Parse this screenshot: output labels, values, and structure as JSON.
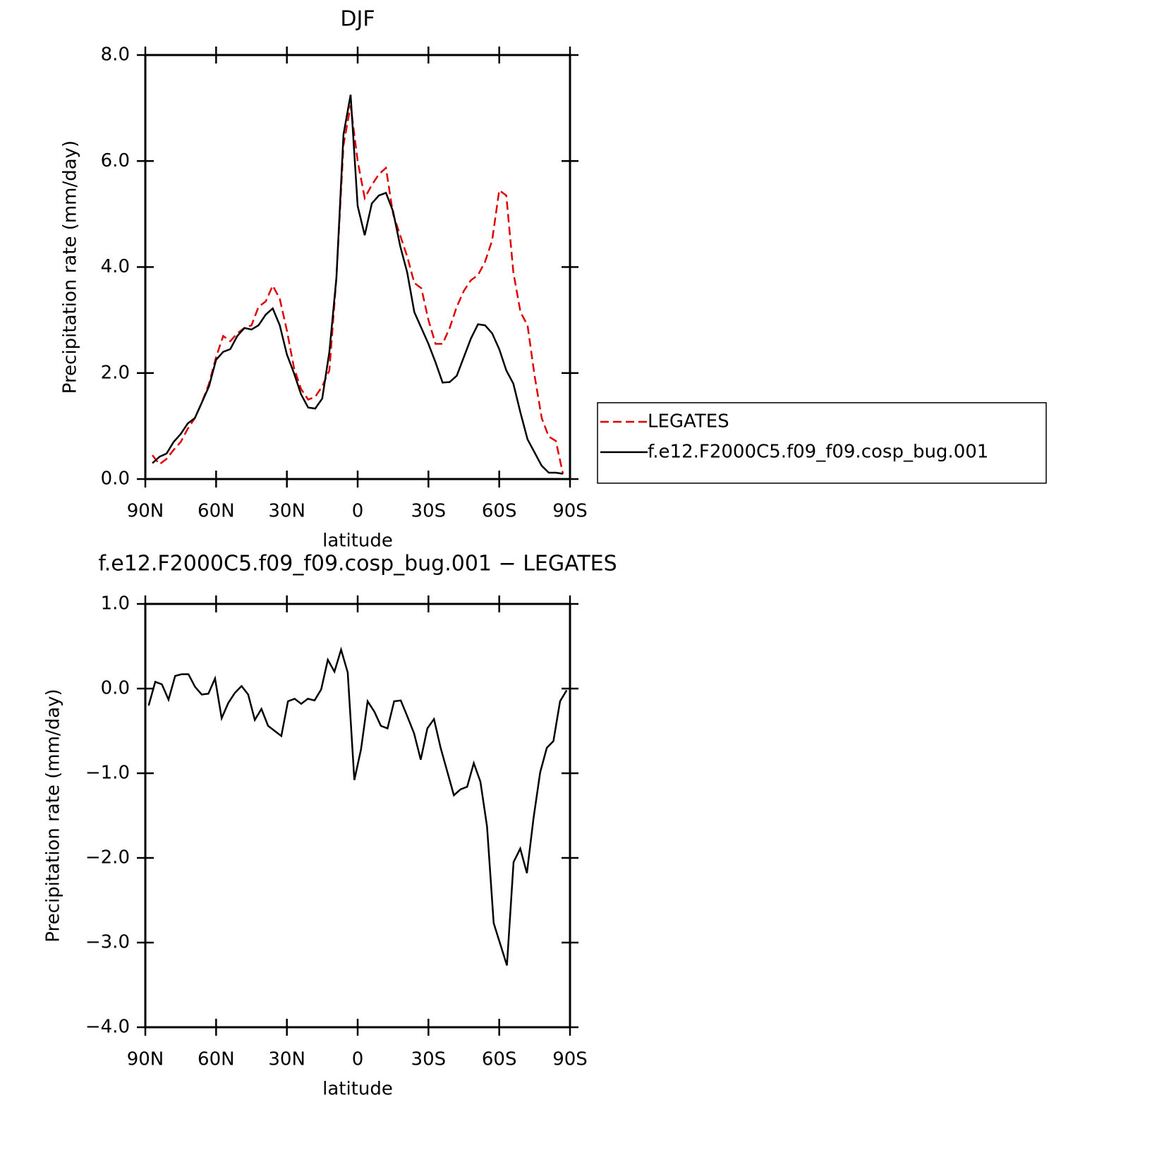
{
  "chart_data": [
    {
      "type": "line",
      "title": "DJF",
      "x_label": "latitude",
      "y_label": "Precipitation rate (mm/day)",
      "xlim": [
        90,
        -90
      ],
      "xticks": [
        {
          "value": 90,
          "label": "90N"
        },
        {
          "value": 60,
          "label": "60N"
        },
        {
          "value": 30,
          "label": "30N"
        },
        0,
        {
          "value": -30,
          "label": "30S"
        },
        {
          "value": -60,
          "label": "60S"
        },
        {
          "value": -90,
          "label": "90S"
        }
      ],
      "ylim": [
        0,
        8
      ],
      "yticks": [
        {
          "value": 0,
          "label": "0.0"
        },
        {
          "value": 2,
          "label": "2.0"
        },
        {
          "value": 4,
          "label": "4.0"
        },
        {
          "value": 6,
          "label": "6.0"
        },
        {
          "value": 8,
          "label": "8.0"
        }
      ],
      "legend": "right",
      "x": [
        87,
        84,
        81,
        78,
        75,
        72,
        69,
        66,
        63,
        60,
        57,
        54,
        51,
        48,
        45,
        42,
        39,
        36,
        33,
        30,
        27,
        24,
        21,
        18,
        15,
        12,
        9,
        6,
        3,
        0,
        -3,
        -6,
        -9,
        -12,
        -15,
        -18,
        -21,
        -24,
        -27,
        -30,
        -33,
        -36,
        -39,
        -42,
        -45,
        -48,
        -51,
        -54,
        -57,
        -60,
        -63,
        -66,
        -69,
        -72,
        -75,
        -78,
        -81,
        -84,
        -87
      ],
      "series": [
        {
          "name": "LEGATES",
          "color": "#e00000",
          "linestyle": "dashed",
          "values": [
            0.45,
            0.28,
            0.38,
            0.55,
            0.7,
            0.95,
            1.15,
            1.45,
            1.8,
            2.3,
            2.7,
            2.6,
            2.75,
            2.85,
            2.9,
            3.25,
            3.35,
            3.65,
            3.4,
            2.8,
            2.1,
            1.7,
            1.5,
            1.55,
            1.75,
            2.05,
            3.8,
            6.3,
            7.05,
            6.0,
            5.3,
            5.55,
            5.75,
            5.87,
            5.0,
            4.6,
            4.2,
            3.7,
            3.6,
            3.0,
            2.55,
            2.55,
            2.85,
            3.25,
            3.55,
            3.75,
            3.85,
            4.1,
            4.5,
            5.45,
            5.35,
            3.9,
            3.15,
            2.9,
            1.95,
            1.15,
            0.8,
            0.72,
            0.1
          ]
        },
        {
          "name": "f.e12.F2000C5.f09_f09.cosp_bug.001",
          "color": "#000000",
          "linestyle": "solid",
          "values": [
            0.3,
            0.42,
            0.48,
            0.7,
            0.85,
            1.05,
            1.15,
            1.45,
            1.75,
            2.25,
            2.4,
            2.45,
            2.7,
            2.85,
            2.82,
            2.9,
            3.1,
            3.22,
            2.9,
            2.35,
            2.0,
            1.6,
            1.35,
            1.33,
            1.52,
            2.4,
            3.8,
            6.5,
            7.25,
            5.15,
            4.6,
            5.2,
            5.35,
            5.4,
            5.05,
            4.4,
            3.9,
            3.15,
            2.85,
            2.55,
            2.2,
            1.82,
            1.83,
            1.95,
            2.3,
            2.65,
            2.92,
            2.9,
            2.75,
            2.45,
            2.05,
            1.8,
            1.25,
            0.75,
            0.5,
            0.25,
            0.12,
            0.12,
            0.1
          ]
        }
      ]
    },
    {
      "type": "line",
      "title": "f.e12.F2000C5.f09_f09.cosp_bug.001 − LEGATES",
      "x_label": "latitude",
      "y_label": "Precipitation rate (mm/day)",
      "xlim": [
        90,
        -90
      ],
      "xticks": [
        {
          "value": 90,
          "label": "90N"
        },
        {
          "value": 60,
          "label": "60N"
        },
        {
          "value": 30,
          "label": "30N"
        },
        0,
        {
          "value": -30,
          "label": "30S"
        },
        {
          "value": -60,
          "label": "60S"
        },
        {
          "value": -90,
          "label": "90S"
        }
      ],
      "ylim": [
        -4,
        1
      ],
      "yticks": [
        {
          "value": -4,
          "label": "−4.0"
        },
        {
          "value": -3,
          "label": "−3.0"
        },
        {
          "value": -2,
          "label": "−2.0"
        },
        {
          "value": -1,
          "label": "−1.0"
        },
        {
          "value": 0,
          "label": "0.0"
        },
        {
          "value": 1,
          "label": "1.0"
        }
      ],
      "x": [
        88.59,
        85.78,
        82.97,
        80.16,
        77.34,
        74.53,
        71.72,
        68.91,
        66.09,
        63.28,
        60.47,
        57.66,
        54.84,
        52.03,
        49.22,
        46.41,
        43.59,
        40.78,
        37.97,
        35.16,
        32.34,
        29.53,
        26.72,
        23.91,
        21.09,
        18.28,
        15.47,
        12.66,
        9.84,
        7.03,
        4.22,
        1.41,
        -1.41,
        -4.22,
        -7.03,
        -9.84,
        -12.66,
        -15.47,
        -18.28,
        -21.09,
        -23.91,
        -26.72,
        -29.53,
        -32.34,
        -35.16,
        -37.97,
        -40.78,
        -43.59,
        -46.41,
        -49.22,
        -52.03,
        -54.84,
        -57.66,
        -60.47,
        -63.28,
        -66.09,
        -68.91,
        -71.72,
        -74.53,
        -77.34,
        -80.16,
        -82.97,
        -85.78,
        -88.59
      ],
      "series": [
        {
          "color": "#000000",
          "linestyle": "solid",
          "values": [
            -0.2,
            0.08,
            0.05,
            -0.13,
            0.15,
            0.17,
            0.17,
            0.02,
            -0.07,
            -0.06,
            0.12,
            -0.35,
            -0.17,
            -0.05,
            0.03,
            -0.07,
            -0.37,
            -0.24,
            -0.44,
            -0.5,
            -0.56,
            -0.15,
            -0.12,
            -0.18,
            -0.12,
            -0.14,
            -0.01,
            0.34,
            0.2,
            0.46,
            0.19,
            -1.08,
            -0.72,
            -0.15,
            -0.27,
            -0.44,
            -0.47,
            -0.15,
            -0.14,
            -0.33,
            -0.53,
            -0.84,
            -0.47,
            -0.36,
            -0.7,
            -0.98,
            -1.26,
            -1.19,
            -1.16,
            -0.88,
            -1.1,
            -1.63,
            -2.77,
            -3.02,
            -3.27,
            -2.05,
            -1.89,
            -2.18,
            -1.53,
            -0.99,
            -0.7,
            -0.62,
            -0.15,
            -0.02
          ]
        }
      ]
    }
  ]
}
